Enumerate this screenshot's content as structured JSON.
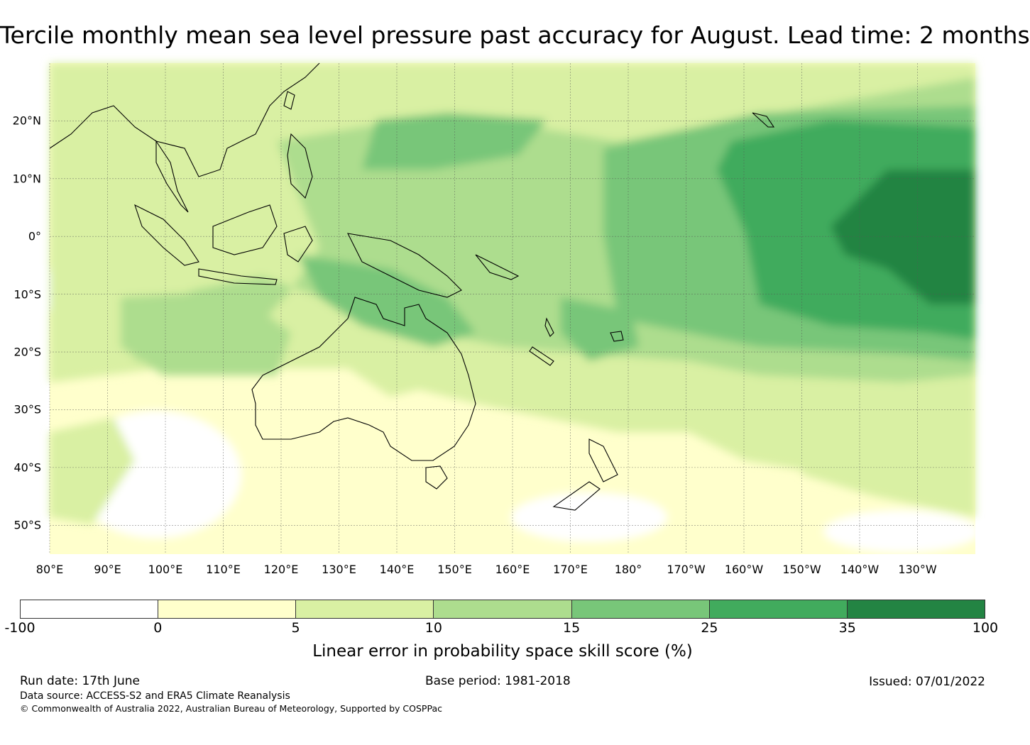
{
  "title": "Tercile monthly mean sea level pressure past accuracy for August. Lead time: 2 months",
  "map": {
    "lat_labels": [
      "20°N",
      "10°N",
      "0°",
      "10°S",
      "20°S",
      "30°S",
      "40°S",
      "50°S"
    ],
    "lat_values": [
      20,
      10,
      0,
      -10,
      -20,
      -30,
      -40,
      -50
    ],
    "lon_labels": [
      "80°E",
      "90°E",
      "100°E",
      "110°E",
      "120°E",
      "130°E",
      "140°E",
      "150°E",
      "160°E",
      "170°E",
      "180°",
      "170°W",
      "160°W",
      "150°W",
      "140°W",
      "130°W"
    ],
    "lon_values": [
      80,
      90,
      100,
      110,
      120,
      130,
      140,
      150,
      160,
      170,
      180,
      190,
      200,
      210,
      220,
      230
    ],
    "extent": {
      "lon": [
        80,
        240
      ],
      "lat": [
        -55,
        30
      ]
    }
  },
  "colorbar": {
    "ticks": [
      "-100",
      "0",
      "5",
      "10",
      "15",
      "25",
      "35",
      "100"
    ],
    "colors": [
      "#ffffff",
      "#ffffcc",
      "#d9f0a3",
      "#addd8e",
      "#78c679",
      "#41ab5d",
      "#238443"
    ],
    "label": "Linear error in probability space skill score (%)"
  },
  "footer": {
    "run_date": "Run date: 17th June",
    "base_period": "Base period: 1981-2018",
    "issued": "Issued: 07/01/2022",
    "data_source": "Data source: ACCESS-S2 and ERA5 Climate Reanalysis",
    "copyright": "© Commonwealth of Australia 2022, Australian Bureau of Meteorology, Supported by COSPPac"
  }
}
